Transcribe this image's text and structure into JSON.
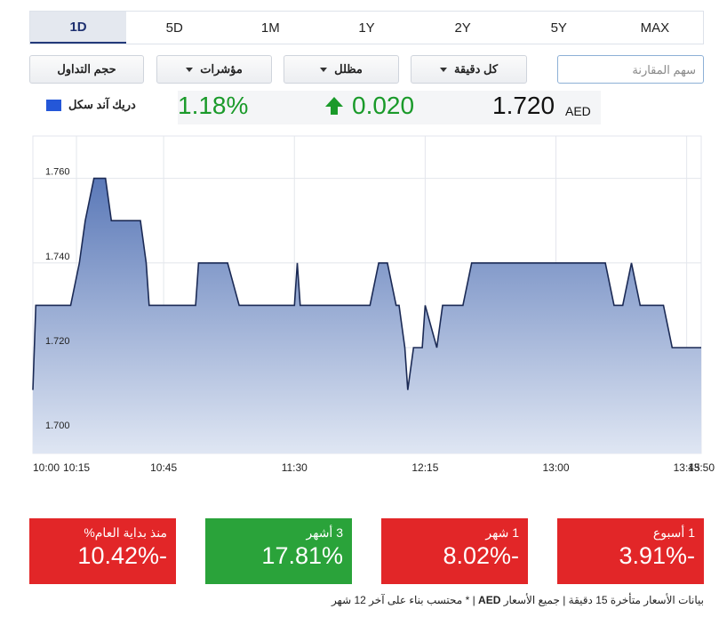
{
  "periods": [
    "1D",
    "5D",
    "1M",
    "1Y",
    "2Y",
    "5Y",
    "MAX"
  ],
  "active_period": "1D",
  "controls": {
    "volume": "حجم التداول",
    "indicators": "مؤشرات",
    "shaded": "مظلل",
    "interval": "كل دقيقة",
    "compare_placeholder": "سهم المقارنة"
  },
  "quote": {
    "name": "دريك آند سكل",
    "price": "1.720",
    "currency": "AED",
    "change": "0.020",
    "percent": "1.18%",
    "up_color": "#1a9a2a"
  },
  "chart_data": {
    "type": "area",
    "x": [
      "10:00",
      "10:01",
      "10:04",
      "10:07",
      "10:08",
      "10:10",
      "10:11",
      "10:13",
      "10:16",
      "10:18",
      "10:21",
      "10:25",
      "10:27",
      "10:37",
      "10:39",
      "10:40",
      "10:42",
      "10:48",
      "10:50",
      "10:51",
      "10:53",
      "10:56",
      "10:57",
      "10:59",
      "11:00",
      "11:02",
      "11:05",
      "11:07",
      "11:11",
      "11:14",
      "11:17",
      "11:18",
      "11:20",
      "11:21",
      "11:23",
      "11:25",
      "11:26",
      "11:28",
      "11:29",
      "11:30",
      "11:31",
      "11:32",
      "11:34",
      "11:36",
      "11:38",
      "11:40",
      "11:42",
      "11:44",
      "11:47",
      "11:50",
      "11:53",
      "11:56",
      "11:59",
      "12:02",
      "12:05",
      "12:06",
      "12:08",
      "12:09",
      "12:11",
      "12:13",
      "12:14",
      "12:15",
      "12:19",
      "12:21",
      "12:23",
      "12:25",
      "12:28",
      "12:31",
      "12:34",
      "12:37",
      "12:40",
      "12:43",
      "12:46",
      "12:48",
      "12:51",
      "12:54",
      "12:57",
      "13:00",
      "13:02",
      "13:05",
      "13:08",
      "13:11",
      "13:14",
      "13:17",
      "13:20",
      "13:23",
      "13:26",
      "13:29",
      "13:32",
      "13:35",
      "13:37",
      "13:40",
      "13:43",
      "13:45",
      "13:46",
      "13:47",
      "13:48",
      "13:49",
      "13:50"
    ],
    "series": [
      {
        "values": [
          1.71,
          1.73,
          1.73,
          1.73,
          1.73,
          1.73,
          1.73,
          1.73,
          1.74,
          1.75,
          1.76,
          1.76,
          1.75,
          1.75,
          1.74,
          1.73,
          1.73,
          1.73,
          1.73,
          1.73,
          1.73,
          1.73,
          1.74,
          1.74,
          1.74,
          1.74,
          1.74,
          1.74,
          1.73,
          1.73,
          1.73,
          1.73,
          1.73,
          1.73,
          1.73,
          1.73,
          1.73,
          1.73,
          1.73,
          1.73,
          1.74,
          1.73,
          1.73,
          1.73,
          1.73,
          1.73,
          1.73,
          1.73,
          1.73,
          1.73,
          1.73,
          1.73,
          1.74,
          1.74,
          1.73,
          1.73,
          1.72,
          1.71,
          1.72,
          1.72,
          1.72,
          1.73,
          1.72,
          1.73,
          1.73,
          1.73,
          1.73,
          1.74,
          1.74,
          1.74,
          1.74,
          1.74,
          1.74,
          1.74,
          1.74,
          1.74,
          1.74,
          1.74,
          1.74,
          1.74,
          1.74,
          1.74,
          1.74,
          1.74,
          1.73,
          1.73,
          1.74,
          1.73,
          1.73,
          1.73,
          1.73,
          1.72,
          1.72,
          1.72,
          1.72,
          1.72,
          1.72,
          1.72,
          1.72
        ]
      }
    ],
    "x_tick_labels": [
      "10:00",
      "10:15",
      "10:45",
      "11:30",
      "12:15",
      "13:00",
      "13:45",
      "13:50"
    ],
    "y_tick_labels": [
      "1.700",
      "1.720",
      "1.740",
      "1.760"
    ],
    "ylim": [
      1.695,
      1.77
    ],
    "grid": true,
    "fill_top": "#5b79b8",
    "fill_bottom": "#dfe6f3",
    "line_color": "#1b2a55"
  },
  "performance": [
    {
      "label": "1 أسبوع",
      "value": "-3.91%",
      "tone": "neg"
    },
    {
      "label": "1 شهر",
      "value": "-8.02%",
      "tone": "neg"
    },
    {
      "label": "3 أشهر",
      "value": "17.81%",
      "tone": "pos"
    },
    {
      "label": "منذ بداية العام%",
      "value": "-10.42%",
      "tone": "neg"
    }
  ],
  "footnote": {
    "part1": "بيانات الأسعار متأخرة 15 دقيقة | جميع الأسعار",
    "currency": "AED",
    "part2": "| * محتسب بناء على آخر 12 شهر"
  }
}
